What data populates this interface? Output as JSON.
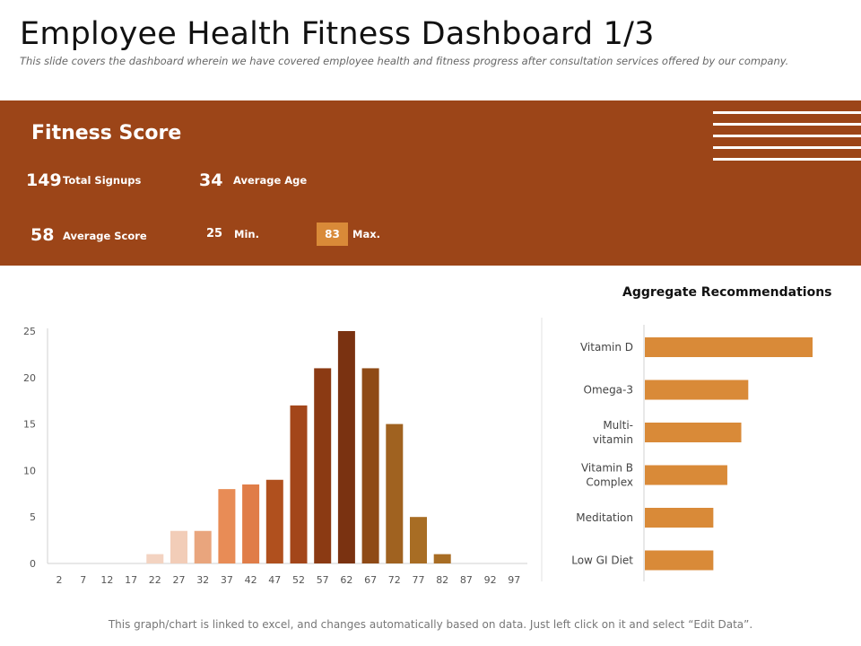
{
  "header": {
    "title": "Employee Health Fitness Dashboard 1/3",
    "subtitle": "This slide covers the dashboard wherein we have covered employee health and fitness progress after consultation services offered by our company."
  },
  "fitness": {
    "title": "Fitness Score",
    "total_signups": "149",
    "total_signups_label": "Total Signups",
    "average_age": "34",
    "average_age_label": "Average Age",
    "average_score": "58",
    "average_score_label": "Average Score",
    "min": "25",
    "min_label": "Min.",
    "max": "83",
    "max_label": "Max."
  },
  "colors": {
    "band": "#9c4518",
    "max_box": "#d98a38",
    "rec_bar": "#d98a38"
  },
  "chart_data": [
    {
      "type": "bar",
      "title": "",
      "categories": [
        "2",
        "7",
        "12",
        "17",
        "22",
        "27",
        "32",
        "37",
        "42",
        "47",
        "52",
        "57",
        "62",
        "67",
        "72",
        "77",
        "82",
        "87",
        "92",
        "97"
      ],
      "values": [
        0,
        0,
        0,
        0,
        1,
        3.5,
        3.5,
        8,
        8.5,
        9,
        17,
        21,
        25,
        21,
        15,
        5,
        1,
        0,
        0,
        0
      ],
      "bar_colors": [
        "#f3d3c1",
        "#f3d3c1",
        "#f3d3c1",
        "#f3d3c1",
        "#f3d3c1",
        "#f2cdb8",
        "#e9a57d",
        "#e88c56",
        "#e07d48",
        "#b0501e",
        "#a3461a",
        "#8b3a13",
        "#7a3211",
        "#8f4a16",
        "#a06220",
        "#a86d24",
        "#a86d24",
        "#a86d24",
        "#a86d24",
        "#a86d24"
      ],
      "yticks": [
        "0",
        "5",
        "10",
        "15",
        "20",
        "25"
      ],
      "ylim": [
        0,
        25
      ],
      "grid": false
    },
    {
      "type": "bar",
      "orientation": "horizontal",
      "title": "Aggregate Recommendations",
      "categories": [
        [
          "Vitamin D"
        ],
        [
          "Omega-3"
        ],
        [
          "Multi-",
          "vitamin"
        ],
        [
          "Vitamin B",
          "Complex"
        ],
        [
          "Meditation"
        ],
        [
          "Low GI Diet"
        ]
      ],
      "values": [
        12,
        7.4,
        6.9,
        5.9,
        4.9,
        4.9
      ],
      "xlim": [
        0,
        13
      ],
      "grid": false
    }
  ],
  "footer": {
    "note": "This graph/chart is linked to excel, and changes automatically based on data. Just left click on it and select “Edit Data”."
  }
}
